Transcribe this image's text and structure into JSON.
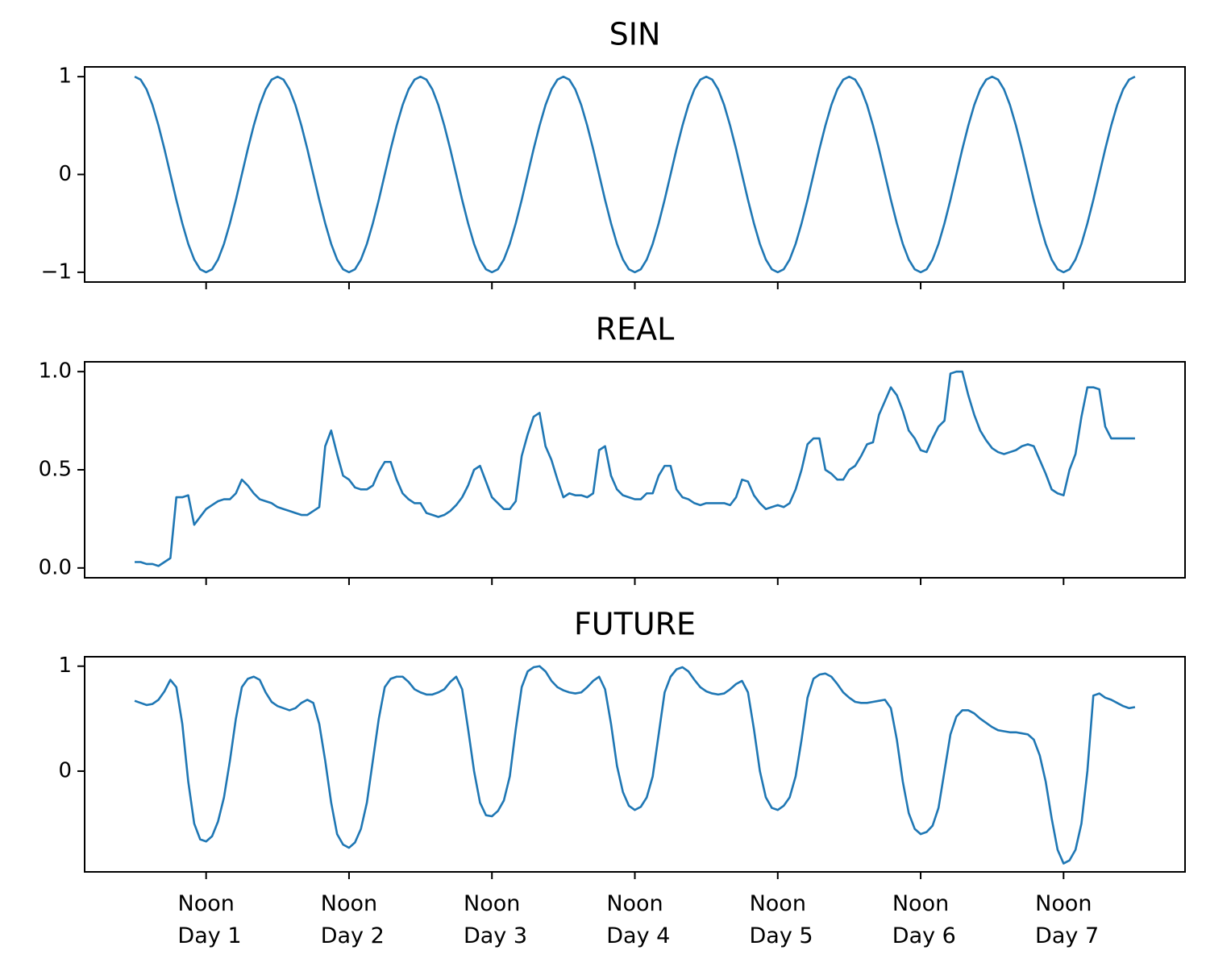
{
  "chart_data": [
    {
      "type": "line",
      "title": "SIN",
      "x": [
        0,
        1,
        2,
        3,
        4,
        5,
        6,
        7,
        8,
        9,
        10,
        11,
        12,
        13,
        14,
        15,
        16,
        17,
        18,
        19,
        20,
        21,
        22,
        23,
        24,
        25,
        26,
        27,
        28,
        29,
        30,
        31,
        32,
        33,
        34,
        35,
        36,
        37,
        38,
        39,
        40,
        41,
        42,
        43,
        44,
        45,
        46,
        47,
        48,
        49,
        50,
        51,
        52,
        53,
        54,
        55,
        56,
        57,
        58,
        59,
        60,
        61,
        62,
        63,
        64,
        65,
        66,
        67,
        68,
        69,
        70,
        71,
        72,
        73,
        74,
        75,
        76,
        77,
        78,
        79,
        80,
        81,
        82,
        83,
        84,
        85,
        86,
        87,
        88,
        89,
        90,
        91,
        92,
        93,
        94,
        95,
        96,
        97,
        98,
        99,
        100,
        101,
        102,
        103,
        104,
        105,
        106,
        107,
        108,
        109,
        110,
        111,
        112,
        113,
        114,
        115,
        116,
        117,
        118,
        119,
        120,
        121,
        122,
        123,
        124,
        125,
        126,
        127,
        128,
        129,
        130,
        131,
        132,
        133,
        134,
        135,
        136,
        137,
        138,
        139,
        140,
        141,
        142,
        143,
        144,
        145,
        146,
        147,
        148,
        149,
        150,
        151,
        152,
        153,
        154,
        155,
        156,
        157,
        158,
        159,
        160,
        161,
        162,
        163,
        164,
        165,
        166,
        167,
        168
      ],
      "series": [
        {
          "color": "#1f77b4",
          "values": [
            1,
            0.97,
            0.87,
            0.71,
            0.5,
            0.26,
            0,
            -0.26,
            -0.5,
            -0.71,
            -0.87,
            -0.97,
            -1,
            -0.97,
            -0.87,
            -0.71,
            -0.5,
            -0.26,
            0,
            0.26,
            0.5,
            0.71,
            0.87,
            0.97,
            1,
            0.97,
            0.87,
            0.71,
            0.5,
            0.26,
            0,
            -0.26,
            -0.5,
            -0.71,
            -0.87,
            -0.97,
            -1,
            -0.97,
            -0.87,
            -0.71,
            -0.5,
            -0.26,
            0,
            0.26,
            0.5,
            0.71,
            0.87,
            0.97,
            1,
            0.97,
            0.87,
            0.71,
            0.5,
            0.26,
            0,
            -0.26,
            -0.5,
            -0.71,
            -0.87,
            -0.97,
            -1,
            -0.97,
            -0.87,
            -0.71,
            -0.5,
            -0.26,
            0,
            0.26,
            0.5,
            0.71,
            0.87,
            0.97,
            1,
            0.97,
            0.87,
            0.71,
            0.5,
            0.26,
            0,
            -0.26,
            -0.5,
            -0.71,
            -0.87,
            -0.97,
            -1,
            -0.97,
            -0.87,
            -0.71,
            -0.5,
            -0.26,
            0,
            0.26,
            0.5,
            0.71,
            0.87,
            0.97,
            1,
            0.97,
            0.87,
            0.71,
            0.5,
            0.26,
            0,
            -0.26,
            -0.5,
            -0.71,
            -0.87,
            -0.97,
            -1,
            -0.97,
            -0.87,
            -0.71,
            -0.5,
            -0.26,
            0,
            0.26,
            0.5,
            0.71,
            0.87,
            0.97,
            1,
            0.97,
            0.87,
            0.71,
            0.5,
            0.26,
            0,
            -0.26,
            -0.5,
            -0.71,
            -0.87,
            -0.97,
            -1,
            -0.97,
            -0.87,
            -0.71,
            -0.5,
            -0.26,
            0,
            0.26,
            0.5,
            0.71,
            0.87,
            0.97,
            1,
            0.97,
            0.87,
            0.71,
            0.5,
            0.26,
            0,
            -0.26,
            -0.5,
            -0.71,
            -0.87,
            -0.97,
            -1,
            -0.97,
            -0.87,
            -0.71,
            -0.5,
            -0.26,
            0,
            0.26,
            0.5,
            0.71,
            0.87,
            0.97,
            1
          ]
        }
      ],
      "xlim": [
        -8.4,
        176.4
      ],
      "xticks": [
        12,
        36,
        60,
        84,
        108,
        132,
        156
      ],
      "ylim": [
        -1.1,
        1.1
      ],
      "yticks": [
        {
          "value": -1,
          "label": "−1"
        },
        0,
        1
      ]
    },
    {
      "type": "line",
      "title": "REAL",
      "x": [
        0,
        1,
        2,
        3,
        4,
        5,
        6,
        7,
        8,
        9,
        10,
        11,
        12,
        13,
        14,
        15,
        16,
        17,
        18,
        19,
        20,
        21,
        22,
        23,
        24,
        25,
        26,
        27,
        28,
        29,
        30,
        31,
        32,
        33,
        34,
        35,
        36,
        37,
        38,
        39,
        40,
        41,
        42,
        43,
        44,
        45,
        46,
        47,
        48,
        49,
        50,
        51,
        52,
        53,
        54,
        55,
        56,
        57,
        58,
        59,
        60,
        61,
        62,
        63,
        64,
        65,
        66,
        67,
        68,
        69,
        70,
        71,
        72,
        73,
        74,
        75,
        76,
        77,
        78,
        79,
        80,
        81,
        82,
        83,
        84,
        85,
        86,
        87,
        88,
        89,
        90,
        91,
        92,
        93,
        94,
        95,
        96,
        97,
        98,
        99,
        100,
        101,
        102,
        103,
        104,
        105,
        106,
        107,
        108,
        109,
        110,
        111,
        112,
        113,
        114,
        115,
        116,
        117,
        118,
        119,
        120,
        121,
        122,
        123,
        124,
        125,
        126,
        127,
        128,
        129,
        130,
        131,
        132,
        133,
        134,
        135,
        136,
        137,
        138,
        139,
        140,
        141,
        142,
        143,
        144,
        145,
        146,
        147,
        148,
        149,
        150,
        151,
        152,
        153,
        154,
        155,
        156,
        157,
        158,
        159,
        160,
        161,
        162,
        163,
        164,
        165,
        166,
        167,
        168
      ],
      "series": [
        {
          "color": "#1f77b4",
          "values": [
            0.03,
            0.03,
            0.02,
            0.02,
            0.01,
            0.03,
            0.05,
            0.36,
            0.36,
            0.37,
            0.22,
            0.26,
            0.3,
            0.32,
            0.34,
            0.35,
            0.35,
            0.38,
            0.45,
            0.42,
            0.38,
            0.35,
            0.34,
            0.33,
            0.31,
            0.3,
            0.29,
            0.28,
            0.27,
            0.27,
            0.29,
            0.31,
            0.62,
            0.7,
            0.58,
            0.47,
            0.45,
            0.41,
            0.4,
            0.4,
            0.42,
            0.49,
            0.54,
            0.54,
            0.45,
            0.38,
            0.35,
            0.33,
            0.33,
            0.28,
            0.27,
            0.26,
            0.27,
            0.29,
            0.32,
            0.36,
            0.42,
            0.5,
            0.52,
            0.44,
            0.36,
            0.33,
            0.3,
            0.3,
            0.34,
            0.57,
            0.68,
            0.77,
            0.79,
            0.62,
            0.55,
            0.45,
            0.36,
            0.38,
            0.37,
            0.37,
            0.36,
            0.38,
            0.6,
            0.62,
            0.47,
            0.4,
            0.37,
            0.36,
            0.35,
            0.35,
            0.38,
            0.38,
            0.47,
            0.52,
            0.52,
            0.4,
            0.36,
            0.35,
            0.33,
            0.32,
            0.33,
            0.33,
            0.33,
            0.33,
            0.32,
            0.36,
            0.45,
            0.44,
            0.37,
            0.33,
            0.3,
            0.31,
            0.32,
            0.31,
            0.33,
            0.4,
            0.5,
            0.63,
            0.66,
            0.66,
            0.5,
            0.48,
            0.45,
            0.45,
            0.5,
            0.52,
            0.57,
            0.63,
            0.64,
            0.78,
            0.85,
            0.92,
            0.88,
            0.8,
            0.7,
            0.66,
            0.6,
            0.59,
            0.66,
            0.72,
            0.75,
            0.99,
            1.0,
            1.0,
            0.88,
            0.78,
            0.7,
            0.65,
            0.61,
            0.59,
            0.58,
            0.59,
            0.6,
            0.62,
            0.63,
            0.62,
            0.55,
            0.48,
            0.4,
            0.38,
            0.37,
            0.5,
            0.58,
            0.77,
            0.92,
            0.92,
            0.91,
            0.72,
            0.66,
            0.66,
            0.66,
            0.66,
            0.66
          ]
        }
      ],
      "xlim": [
        -8.4,
        176.4
      ],
      "xticks": [
        12,
        36,
        60,
        84,
        108,
        132,
        156
      ],
      "ylim": [
        -0.05,
        1.05
      ],
      "yticks": [
        {
          "value": 0,
          "label": "0.0"
        },
        0.5,
        {
          "value": 1,
          "label": "1.0"
        }
      ]
    },
    {
      "type": "line",
      "title": "FUTURE",
      "x": [
        0,
        1,
        2,
        3,
        4,
        5,
        6,
        7,
        8,
        9,
        10,
        11,
        12,
        13,
        14,
        15,
        16,
        17,
        18,
        19,
        20,
        21,
        22,
        23,
        24,
        25,
        26,
        27,
        28,
        29,
        30,
        31,
        32,
        33,
        34,
        35,
        36,
        37,
        38,
        39,
        40,
        41,
        42,
        43,
        44,
        45,
        46,
        47,
        48,
        49,
        50,
        51,
        52,
        53,
        54,
        55,
        56,
        57,
        58,
        59,
        60,
        61,
        62,
        63,
        64,
        65,
        66,
        67,
        68,
        69,
        70,
        71,
        72,
        73,
        74,
        75,
        76,
        77,
        78,
        79,
        80,
        81,
        82,
        83,
        84,
        85,
        86,
        87,
        88,
        89,
        90,
        91,
        92,
        93,
        94,
        95,
        96,
        97,
        98,
        99,
        100,
        101,
        102,
        103,
        104,
        105,
        106,
        107,
        108,
        109,
        110,
        111,
        112,
        113,
        114,
        115,
        116,
        117,
        118,
        119,
        120,
        121,
        122,
        123,
        124,
        125,
        126,
        127,
        128,
        129,
        130,
        131,
        132,
        133,
        134,
        135,
        136,
        137,
        138,
        139,
        140,
        141,
        142,
        143,
        144,
        145,
        146,
        147,
        148,
        149,
        150,
        151,
        152,
        153,
        154,
        155,
        156,
        157,
        158,
        159,
        160,
        161,
        162,
        163,
        164,
        165,
        166,
        167,
        168
      ],
      "series": [
        {
          "color": "#1f77b4",
          "values": [
            0.67,
            0.65,
            0.63,
            0.64,
            0.68,
            0.76,
            0.87,
            0.8,
            0.45,
            -0.1,
            -0.5,
            -0.65,
            -0.67,
            -0.62,
            -0.48,
            -0.25,
            0.1,
            0.5,
            0.8,
            0.88,
            0.9,
            0.87,
            0.75,
            0.66,
            0.62,
            0.6,
            0.58,
            0.6,
            0.65,
            0.68,
            0.65,
            0.45,
            0.1,
            -0.3,
            -0.6,
            -0.7,
            -0.73,
            -0.68,
            -0.55,
            -0.3,
            0.1,
            0.5,
            0.8,
            0.88,
            0.9,
            0.9,
            0.85,
            0.78,
            0.75,
            0.73,
            0.73,
            0.75,
            0.78,
            0.85,
            0.9,
            0.78,
            0.4,
            0.0,
            -0.3,
            -0.42,
            -0.43,
            -0.38,
            -0.28,
            -0.05,
            0.4,
            0.8,
            0.95,
            0.99,
            1.0,
            0.95,
            0.86,
            0.8,
            0.77,
            0.75,
            0.74,
            0.75,
            0.8,
            0.86,
            0.9,
            0.78,
            0.45,
            0.05,
            -0.2,
            -0.33,
            -0.37,
            -0.34,
            -0.25,
            -0.05,
            0.35,
            0.75,
            0.9,
            0.97,
            0.99,
            0.95,
            0.87,
            0.8,
            0.76,
            0.74,
            0.73,
            0.74,
            0.78,
            0.83,
            0.86,
            0.75,
            0.4,
            0.0,
            -0.25,
            -0.35,
            -0.37,
            -0.33,
            -0.25,
            -0.05,
            0.3,
            0.7,
            0.88,
            0.92,
            0.93,
            0.9,
            0.83,
            0.75,
            0.7,
            0.66,
            0.65,
            0.65,
            0.66,
            0.67,
            0.68,
            0.6,
            0.3,
            -0.1,
            -0.4,
            -0.55,
            -0.6,
            -0.58,
            -0.52,
            -0.35,
            0.0,
            0.35,
            0.52,
            0.58,
            0.58,
            0.55,
            0.5,
            0.46,
            0.42,
            0.39,
            0.38,
            0.37,
            0.37,
            0.36,
            0.35,
            0.3,
            0.15,
            -0.1,
            -0.45,
            -0.75,
            -0.88,
            -0.85,
            -0.75,
            -0.5,
            0.0,
            0.72,
            0.74,
            0.7,
            0.68,
            0.65,
            0.62,
            0.6,
            0.61
          ]
        }
      ],
      "xlim": [
        -8.4,
        176.4
      ],
      "xticks": [
        {
          "value": 12,
          "label": "Noon\n Day 1"
        },
        {
          "value": 36,
          "label": "Noon\n Day 2"
        },
        {
          "value": 60,
          "label": "Noon\n Day 3"
        },
        {
          "value": 84,
          "label": "Noon\n Day 4"
        },
        {
          "value": 108,
          "label": "Noon\n Day 5"
        },
        {
          "value": 132,
          "label": "Noon\n Day 6"
        },
        {
          "value": 156,
          "label": "Noon\n Day 7"
        }
      ],
      "ylim": [
        -0.96,
        1.09
      ],
      "yticks": [
        0,
        1
      ]
    }
  ]
}
